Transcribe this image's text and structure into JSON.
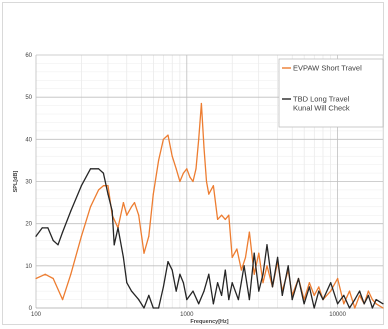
{
  "chart_data": {
    "type": "line",
    "xlabel": "Frequency[Hz]",
    "ylabel": "SPL[dB]",
    "xscale": "log",
    "xlim": [
      100,
      20000
    ],
    "ylim": [
      0,
      60
    ],
    "x_tick_labels": [
      "100",
      "1000",
      "10000"
    ],
    "y_tick_labels": [
      "0",
      "10",
      "20",
      "30",
      "40",
      "50",
      "60"
    ],
    "grid": true,
    "legend_position": "top-right",
    "series": [
      {
        "name": "EVPAW Short Travel",
        "color": "#ED7D31",
        "x": [
          100,
          115,
          130,
          150,
          170,
          200,
          230,
          260,
          280,
          300,
          320,
          350,
          380,
          400,
          430,
          450,
          480,
          520,
          560,
          600,
          650,
          700,
          750,
          800,
          850,
          900,
          950,
          1000,
          1050,
          1100,
          1150,
          1200,
          1250,
          1300,
          1350,
          1400,
          1500,
          1600,
          1700,
          1800,
          1900,
          2000,
          2150,
          2300,
          2450,
          2600,
          2800,
          3000,
          3200,
          3400,
          3700,
          4000,
          4300,
          4700,
          5000,
          5500,
          6000,
          6500,
          7000,
          7500,
          8000,
          9000,
          10000,
          11000,
          12000,
          13000,
          14000,
          15000,
          16000,
          17000,
          18000,
          20000
        ],
        "y": [
          7,
          8,
          7,
          2,
          8,
          17,
          24,
          28,
          29,
          29,
          22,
          19,
          25,
          22,
          24,
          25,
          22,
          13,
          17,
          27,
          35,
          40,
          41,
          36,
          33,
          30,
          32,
          33,
          31,
          30,
          33,
          40,
          48.5,
          38,
          30,
          27,
          29,
          21,
          22,
          21,
          22,
          12,
          14,
          9,
          12,
          18,
          8,
          13,
          6,
          10,
          5,
          11,
          4,
          9,
          3,
          7,
          2,
          6,
          3,
          5,
          2,
          4,
          7,
          1,
          4,
          0,
          3,
          1,
          4,
          2,
          1,
          0
        ]
      },
      {
        "name": "TBD Long Travel Kunal Will Check",
        "color": "#262626",
        "x": [
          100,
          110,
          120,
          130,
          140,
          150,
          170,
          200,
          230,
          260,
          280,
          300,
          320,
          330,
          350,
          380,
          400,
          430,
          480,
          520,
          560,
          600,
          650,
          700,
          750,
          800,
          850,
          900,
          950,
          1000,
          1100,
          1200,
          1300,
          1400,
          1500,
          1600,
          1700,
          1800,
          1900,
          2000,
          2200,
          2400,
          2600,
          2800,
          3000,
          3200,
          3400,
          3700,
          4000,
          4300,
          4700,
          5000,
          5500,
          6000,
          6500,
          7000,
          7500,
          8000,
          9000,
          10000,
          11000,
          12000,
          13000,
          14000,
          15000,
          16000,
          17000,
          18000,
          20000
        ],
        "y": [
          17,
          19,
          19,
          16,
          15,
          18,
          23,
          29,
          33,
          33,
          32,
          27,
          23,
          15,
          19,
          12,
          6,
          4,
          2,
          0,
          3,
          0,
          0,
          5,
          11,
          9,
          4,
          8,
          6,
          2,
          4,
          1,
          4,
          8,
          1,
          6,
          3,
          9,
          2,
          6,
          2,
          10,
          2,
          13,
          4,
          8,
          15,
          5,
          12,
          3,
          10,
          2,
          7,
          1,
          5,
          0,
          4,
          2,
          6,
          1,
          3,
          0,
          2,
          4,
          1,
          3,
          0,
          2,
          1
        ]
      }
    ]
  }
}
